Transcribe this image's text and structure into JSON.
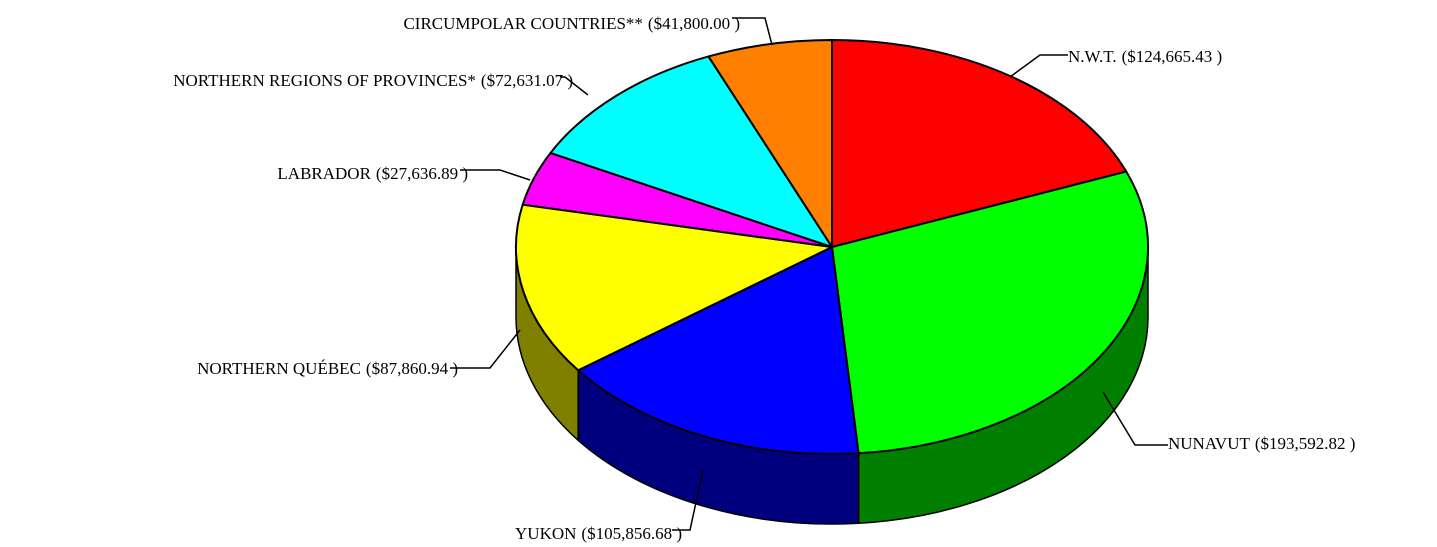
{
  "chart_data": {
    "type": "pie",
    "categories": [
      "N.W.T.",
      "NUNAVUT",
      "YUKON",
      "NORTHERN QUÉBEC",
      "LABRADOR",
      "NORTHERN REGIONS OF PROVINCES*",
      "CIRCUMPOLAR COUNTRIES**"
    ],
    "values": [
      124665.43,
      193592.82,
      105856.68,
      87860.94,
      27636.89,
      72631.07,
      41800.0
    ],
    "value_labels": [
      "($124,665.43 )",
      "($193,592.82 )",
      "($105,856.68 )",
      "($87,860.94 )",
      "($27,636.89 )",
      "($72,631.07 )",
      "($41,800.00 )"
    ],
    "colors": [
      "#ff0000",
      "#00ff00",
      "#0000ff",
      "#ffff00",
      "#ff00ff",
      "#00ffff",
      "#ff8000"
    ]
  }
}
